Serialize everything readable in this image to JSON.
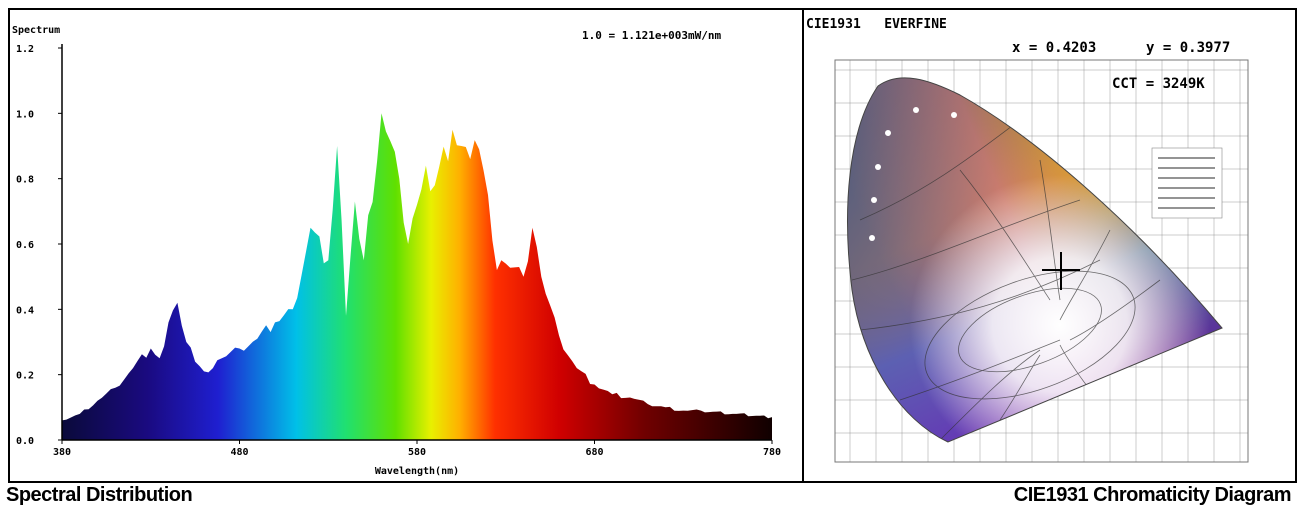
{
  "chart_data": [
    {
      "type": "area",
      "ylabel": "Spectrum",
      "xlabel": "Wavelength(nm)",
      "annotation": "1.0 = 1.121e+003mW/nm",
      "xlim": [
        380,
        780
      ],
      "ylim": [
        0,
        1.2
      ],
      "x_ticks": [
        "380",
        "480",
        "580",
        "680",
        "780"
      ],
      "y_ticks": [
        "0.0",
        "0.2",
        "0.4",
        "0.6",
        "0.8",
        "1.0",
        "1.2"
      ],
      "x": [
        380,
        390,
        400,
        410,
        420,
        430,
        435,
        440,
        445,
        450,
        455,
        460,
        465,
        470,
        480,
        490,
        500,
        510,
        520,
        530,
        535,
        540,
        545,
        550,
        560,
        570,
        575,
        580,
        585,
        590,
        600,
        610,
        615,
        620,
        625,
        630,
        640,
        645,
        650,
        660,
        670,
        680,
        690,
        700,
        710,
        720,
        730,
        740,
        760,
        780
      ],
      "values": [
        0.06,
        0.08,
        0.12,
        0.16,
        0.22,
        0.28,
        0.25,
        0.36,
        0.42,
        0.3,
        0.24,
        0.21,
        0.22,
        0.25,
        0.28,
        0.31,
        0.36,
        0.4,
        0.65,
        0.55,
        0.9,
        0.38,
        0.73,
        0.55,
        1.0,
        0.8,
        0.6,
        0.72,
        0.84,
        0.78,
        0.95,
        0.86,
        0.89,
        0.75,
        0.52,
        0.54,
        0.5,
        0.65,
        0.5,
        0.32,
        0.22,
        0.17,
        0.14,
        0.13,
        0.11,
        0.1,
        0.09,
        0.09,
        0.08,
        0.07
      ]
    },
    {
      "type": "scatter",
      "title": "CIE1931   EVERFINE",
      "x_value_text": "x = 0.4203",
      "y_value_text": "y = 0.3977",
      "cct_text": "CCT = 3249K",
      "point": {
        "x": 0.4203,
        "y": 0.3977
      }
    }
  ],
  "captions": {
    "left": "Spectral Distribution",
    "right": "CIE1931 Chromaticity Diagram"
  }
}
